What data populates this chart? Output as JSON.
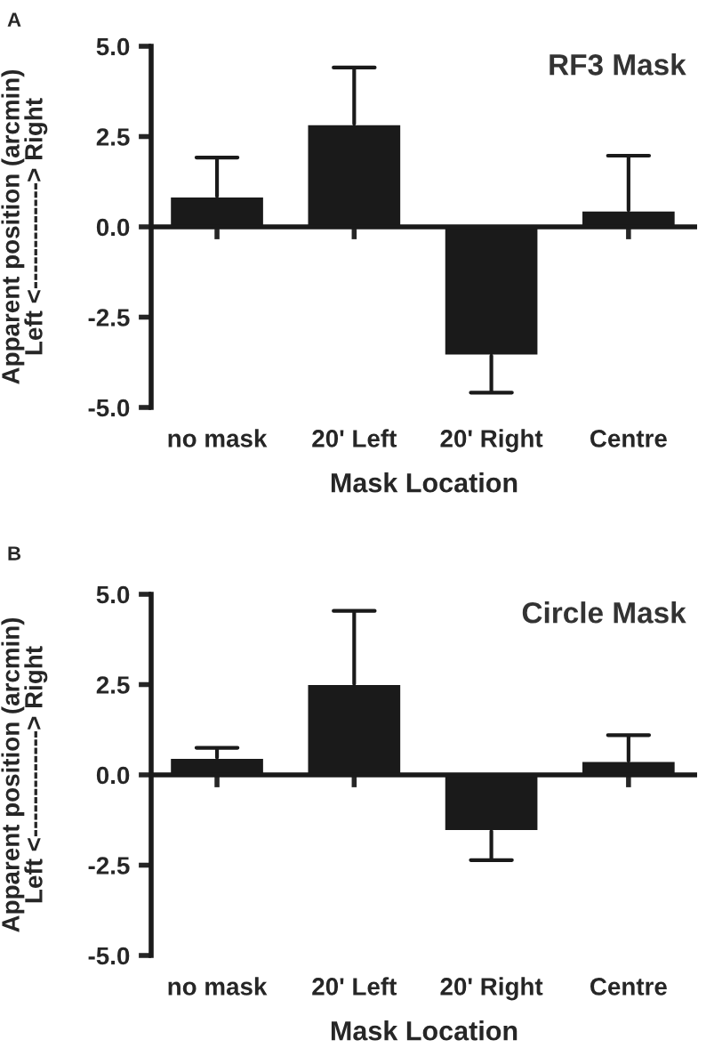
{
  "chart_data": [
    {
      "type": "bar",
      "title": "RF3 Mask",
      "xlabel": "Mask Location",
      "ylabel": "Apparent position (arcmin)\nLeft <-------------> Right",
      "annotations": [
        "A"
      ],
      "categories": [
        "no mask",
        "20' Left",
        "20' Right",
        "Centre"
      ],
      "values": [
        0.85,
        2.85,
        -3.57,
        0.46
      ],
      "color": "#1a1a1a",
      "ref_lines": [
        {
          "axis": "y",
          "value": 0,
          "color": "#1a1a1a"
        }
      ],
      "errors": [
        [
          0.85,
          1.92
        ],
        [
          2.85,
          4.41
        ],
        [
          -4.59,
          -3.57
        ],
        [
          0.46,
          1.97
        ]
      ],
      "ylim": [
        -5,
        5
      ],
      "yticks": [
        {
          "value": -5,
          "label": "-5.0"
        },
        {
          "value": -2.5,
          "label": "-2.5"
        },
        {
          "value": 0,
          "label": "0.0"
        },
        {
          "value": 2.5,
          "label": "2.5"
        },
        {
          "value": 5,
          "label": "5.0"
        }
      ],
      "grid": false
    },
    {
      "type": "bar",
      "title": "Circle Mask",
      "xlabel": "Mask Location",
      "ylabel": "Apparent position (arcmin)\nLeft <-------------> Right",
      "annotations": [
        "B"
      ],
      "categories": [
        "no mask",
        "20' Left",
        "20' Right",
        "Centre"
      ],
      "values": [
        0.48,
        2.52,
        -1.56,
        0.39
      ],
      "color": "#1a1a1a",
      "ref_lines": [
        {
          "axis": "y",
          "value": 0,
          "color": "#1a1a1a"
        }
      ],
      "errors": [
        [
          0.48,
          0.75
        ],
        [
          2.52,
          4.54
        ],
        [
          -2.36,
          -1.56
        ],
        [
          0.39,
          1.1
        ]
      ],
      "ylim": [
        -5,
        5
      ],
      "yticks": [
        {
          "value": -5,
          "label": "-5.0"
        },
        {
          "value": -2.5,
          "label": "-2.5"
        },
        {
          "value": 0,
          "label": "0.0"
        },
        {
          "value": 2.5,
          "label": "2.5"
        },
        {
          "value": 5,
          "label": "5.0"
        }
      ],
      "grid": false
    }
  ]
}
